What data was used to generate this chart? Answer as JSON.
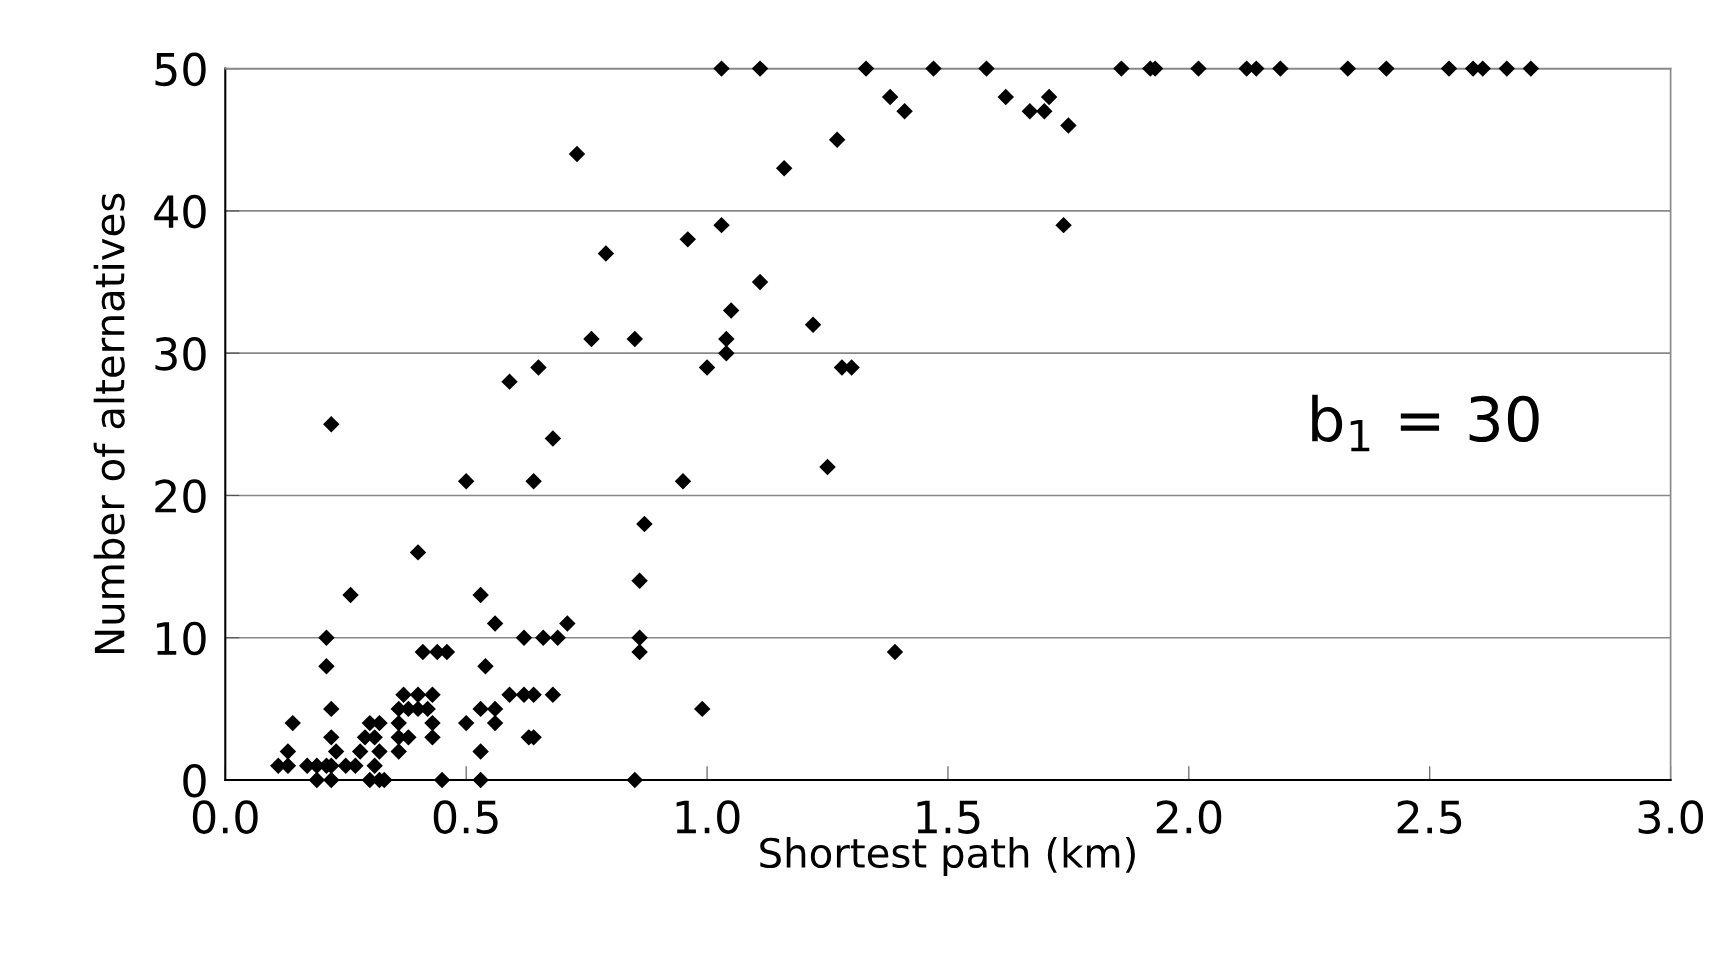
{
  "chart_data": {
    "type": "scatter",
    "xlabel": "Shortest path (km)",
    "ylabel": "Number of alternatives",
    "annotations": [
      "b$_{1}$ = 30"
    ],
    "xlim": [
      0.0,
      3.0
    ],
    "xticks": [
      {
        "value": 0.0,
        "label": "0.0"
      },
      {
        "value": 0.5,
        "label": "0.5"
      },
      {
        "value": 1.0,
        "label": "1.0"
      },
      {
        "value": 1.5,
        "label": "1.5"
      },
      {
        "value": 2.0,
        "label": "2.0"
      },
      {
        "value": 2.5,
        "label": "2.5"
      },
      {
        "value": 3.0,
        "label": "3.0"
      }
    ],
    "ylim": [
      0,
      50
    ],
    "yticks": [
      0,
      10,
      20,
      30,
      40,
      50
    ],
    "grid": "y",
    "marker": "diamond",
    "series": [
      {
        "color": "#000000",
        "x": [
          1.03,
          1.11,
          1.33,
          1.47,
          1.58,
          1.86,
          1.92,
          1.93,
          2.02,
          2.12,
          2.14,
          2.19,
          2.33,
          2.41,
          2.54,
          2.59,
          2.61,
          2.66,
          2.71,
          1.38,
          1.41,
          1.27,
          1.62,
          1.67,
          1.7,
          1.71,
          1.75,
          1.74,
          1.39,
          0.73,
          1.16,
          1.03,
          0.96,
          0.79,
          1.11,
          1.05,
          1.22,
          0.76,
          0.85,
          1.04,
          1.04,
          0.65,
          1.0,
          1.28,
          1.3,
          0.59,
          0.68,
          0.5,
          0.64,
          0.95,
          0.87,
          1.25,
          0.22,
          0.4,
          0.26,
          0.53,
          0.86,
          0.56,
          0.71,
          0.21,
          0.62,
          0.66,
          0.69,
          0.86,
          0.41,
          0.44,
          0.46,
          0.86,
          0.21,
          0.54,
          0.37,
          0.4,
          0.43,
          0.59,
          0.62,
          0.64,
          0.68,
          0.36,
          0.38,
          0.4,
          0.42,
          0.22,
          0.53,
          0.56,
          0.99,
          0.14,
          0.3,
          0.32,
          0.36,
          0.43,
          0.5,
          0.56,
          0.22,
          0.29,
          0.31,
          0.36,
          0.38,
          0.43,
          0.63,
          0.64,
          0.13,
          0.23,
          0.28,
          0.32,
          0.36,
          0.53,
          0.11,
          0.13,
          0.17,
          0.19,
          0.21,
          0.22,
          0.25,
          0.27,
          0.31,
          0.19,
          0.22,
          0.3,
          0.32,
          0.33,
          0.45,
          0.53,
          0.85
        ],
        "values": [
          50,
          50,
          50,
          50,
          50,
          50,
          50,
          50,
          50,
          50,
          50,
          50,
          50,
          50,
          50,
          50,
          50,
          50,
          50,
          48,
          47,
          45,
          48,
          47,
          47,
          48,
          46,
          39,
          9,
          44,
          43,
          39,
          38,
          37,
          35,
          33,
          32,
          31,
          31,
          31,
          30,
          29,
          29,
          29,
          29,
          28,
          24,
          21,
          21,
          21,
          18,
          22,
          25,
          16,
          13,
          13,
          14,
          11,
          11,
          10,
          10,
          10,
          10,
          10,
          9,
          9,
          9,
          9,
          8,
          8,
          6,
          6,
          6,
          6,
          6,
          6,
          6,
          5,
          5,
          5,
          5,
          5,
          5,
          5,
          5,
          4,
          4,
          4,
          4,
          4,
          4,
          4,
          3,
          3,
          3,
          3,
          3,
          3,
          3,
          3,
          2,
          2,
          2,
          2,
          2,
          2,
          1,
          1,
          1,
          1,
          1,
          1,
          1,
          1,
          1,
          0,
          0,
          0,
          0,
          0,
          0,
          0,
          0
        ]
      }
    ]
  }
}
